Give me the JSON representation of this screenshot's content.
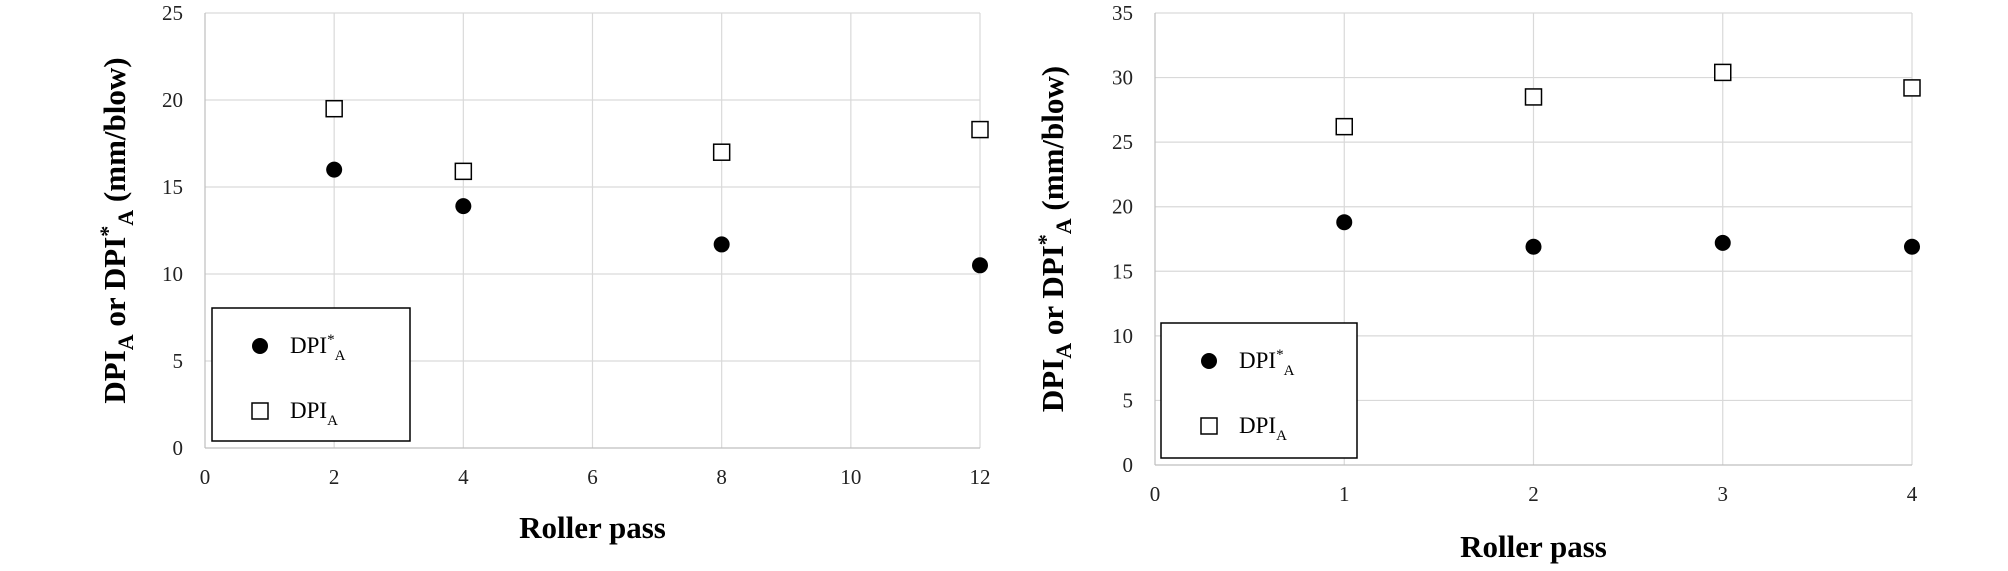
{
  "chart_data": [
    {
      "type": "scatter",
      "xlabel": "Roller pass",
      "ylabel": {
        "base": "DPI",
        "sub": "A",
        "or": " or ",
        "base2": "DPI",
        "sup": "*",
        "sub2": "A",
        "unit": " (mm/blow)"
      },
      "xlim": [
        0,
        12
      ],
      "ylim": [
        0,
        25
      ],
      "xticks": [
        0,
        2,
        4,
        6,
        8,
        10,
        12
      ],
      "yticks": [
        0,
        5,
        10,
        15,
        20,
        25
      ],
      "grid": true,
      "legend_position": "bottom-left",
      "series": [
        {
          "name": "DPI*A",
          "label": {
            "base": "DPI",
            "sup": "*",
            "sub": "A"
          },
          "marker": "filled-circle",
          "x": [
            2,
            4,
            8,
            12
          ],
          "y": [
            16.0,
            13.9,
            11.7,
            10.5
          ]
        },
        {
          "name": "DPIA",
          "label": {
            "base": "DPI",
            "sub": "A"
          },
          "marker": "open-square",
          "x": [
            2,
            4,
            8,
            12
          ],
          "y": [
            19.5,
            15.9,
            17.0,
            18.3
          ]
        }
      ]
    },
    {
      "type": "scatter",
      "xlabel": "Roller pass",
      "ylabel": {
        "base": "DPI",
        "sub": "A",
        "or": " or ",
        "base2": "DPI",
        "sup": "*",
        "sub2": "A",
        "unit": " (mm/blow)"
      },
      "xlim": [
        0,
        4
      ],
      "ylim": [
        0,
        35
      ],
      "xticks": [
        0,
        1,
        2,
        3,
        4
      ],
      "yticks": [
        0,
        5,
        10,
        15,
        20,
        25,
        30,
        35
      ],
      "grid": true,
      "legend_position": "bottom-left",
      "series": [
        {
          "name": "DPI*A",
          "label": {
            "base": "DPI",
            "sup": "*",
            "sub": "A"
          },
          "marker": "filled-circle",
          "x": [
            1,
            2,
            3,
            4
          ],
          "y": [
            18.8,
            16.9,
            17.2,
            16.9
          ]
        },
        {
          "name": "DPIA",
          "label": {
            "base": "DPI",
            "sub": "A"
          },
          "marker": "open-square",
          "x": [
            1,
            2,
            3,
            4
          ],
          "y": [
            26.2,
            28.5,
            30.4,
            29.2
          ]
        }
      ]
    }
  ]
}
